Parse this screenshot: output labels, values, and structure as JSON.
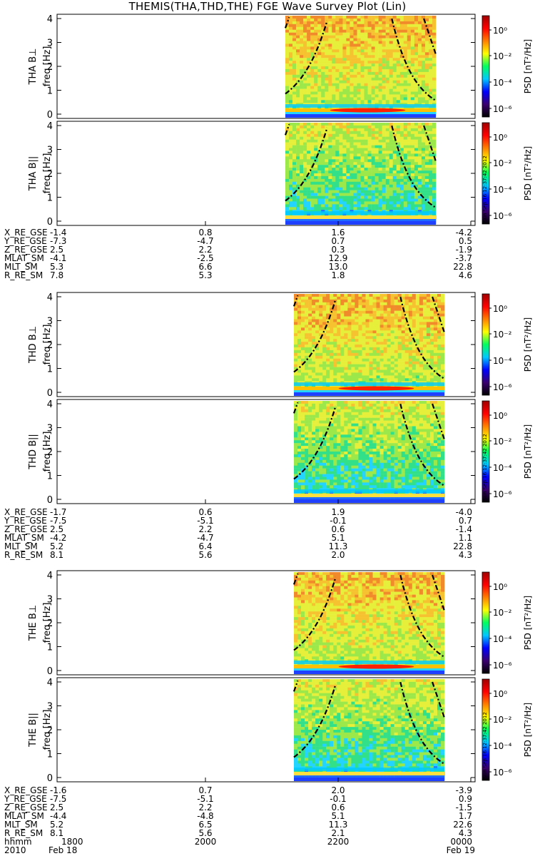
{
  "title": "THEMIS(THA,THD,THE) FGE Wave Survey Plot (Lin)",
  "colorbar": {
    "label": "PSD [nT²/Hz]",
    "ticks": [
      "10⁰",
      "10⁻²",
      "10⁻⁴",
      "10⁻⁶"
    ],
    "stamp": "Sun Sep 16 12:37:42 2012"
  },
  "chart_data": {
    "type": "heatmap",
    "panels": [
      {
        "probe": "THA",
        "component": "B⊥",
        "ylabel": "freq [Hz]",
        "yticks": [
          "0",
          "1",
          "2",
          "3",
          "4"
        ],
        "ylim": [
          0,
          4
        ]
      },
      {
        "probe": "THA",
        "component": "B||",
        "ylabel": "freq [Hz]",
        "yticks": [
          "0",
          "1",
          "2",
          "3",
          "4"
        ],
        "ylim": [
          0,
          4
        ]
      },
      {
        "probe": "THD",
        "component": "B⊥",
        "ylabel": "freq [Hz]",
        "yticks": [
          "0",
          "1",
          "2",
          "3",
          "4"
        ],
        "ylim": [
          0,
          4
        ]
      },
      {
        "probe": "THD",
        "component": "B||",
        "ylabel": "freq [Hz]",
        "yticks": [
          "0",
          "1",
          "2",
          "3",
          "4"
        ],
        "ylim": [
          0,
          4
        ]
      },
      {
        "probe": "THE",
        "component": "B⊥",
        "ylabel": "freq [Hz]",
        "yticks": [
          "0",
          "1",
          "2",
          "3",
          "4"
        ],
        "ylim": [
          0,
          4
        ]
      },
      {
        "probe": "THE",
        "component": "B||",
        "ylabel": "freq [Hz]",
        "yticks": [
          "0",
          "1",
          "2",
          "3",
          "4"
        ],
        "ylim": [
          0,
          4
        ]
      }
    ],
    "xaxis": {
      "hhmm": [
        "1800",
        "2000",
        "2200",
        "0000"
      ],
      "year": "2010",
      "date_start": "Feb 18",
      "date_end": "Feb 19"
    },
    "ephemeris": [
      {
        "probe": "THA",
        "rows": [
          {
            "name": "X_RE_GSE",
            "values": [
              "-1.4",
              "0.8",
              "1.6",
              "-4.2"
            ]
          },
          {
            "name": "Y_RE_GSE",
            "values": [
              "-7.3",
              "-4.7",
              "0.7",
              "0.5"
            ]
          },
          {
            "name": "Z_RE_GSE",
            "values": [
              "2.5",
              "2.2",
              "0.3",
              "-1.9"
            ]
          },
          {
            "name": "MLAT_SM",
            "values": [
              "-4.1",
              "-2.5",
              "12.9",
              "-3.7"
            ]
          },
          {
            "name": "MLT_SM",
            "values": [
              "5.3",
              "6.6",
              "13.0",
              "22.8"
            ]
          },
          {
            "name": "R_RE_SM",
            "values": [
              "7.8",
              "5.3",
              "1.8",
              "4.6"
            ]
          }
        ]
      },
      {
        "probe": "THD",
        "rows": [
          {
            "name": "X_RE_GSE",
            "values": [
              "-1.7",
              "0.6",
              "1.9",
              "-4.0"
            ]
          },
          {
            "name": "Y_RE_GSE",
            "values": [
              "-7.5",
              "-5.1",
              "-0.1",
              "0.7"
            ]
          },
          {
            "name": "Z_RE_GSE",
            "values": [
              "2.5",
              "2.2",
              "0.6",
              "-1.4"
            ]
          },
          {
            "name": "MLAT_SM",
            "values": [
              "-4.2",
              "-4.7",
              "5.1",
              "1.1"
            ]
          },
          {
            "name": "MLT_SM",
            "values": [
              "5.2",
              "6.4",
              "11.3",
              "22.8"
            ]
          },
          {
            "name": "R_RE_SM",
            "values": [
              "8.1",
              "5.6",
              "2.0",
              "4.3"
            ]
          }
        ]
      },
      {
        "probe": "THE",
        "rows": [
          {
            "name": "X_RE_GSE",
            "values": [
              "-1.6",
              "0.7",
              "2.0",
              "-3.9"
            ]
          },
          {
            "name": "Y_RE_GSE",
            "values": [
              "-7.5",
              "-5.1",
              "-0.1",
              "0.9"
            ]
          },
          {
            "name": "Z_RE_GSE",
            "values": [
              "2.5",
              "2.2",
              "0.6",
              "-1.5"
            ]
          },
          {
            "name": "MLAT_SM",
            "values": [
              "-4.4",
              "-4.8",
              "5.1",
              "1.7"
            ]
          },
          {
            "name": "MLT_SM",
            "values": [
              "5.2",
              "6.5",
              "11.3",
              "22.6"
            ]
          },
          {
            "name": "R_RE_SM",
            "values": [
              "8.1",
              "5.6",
              "2.1",
              "4.3"
            ]
          }
        ]
      }
    ],
    "colors": {
      "colorbar_stops": [
        "#000000",
        "#3a0070",
        "#0000ff",
        "#00c8ff",
        "#00ff60",
        "#ffff00",
        "#ff8000",
        "#ff0000",
        "#a00000"
      ]
    }
  }
}
